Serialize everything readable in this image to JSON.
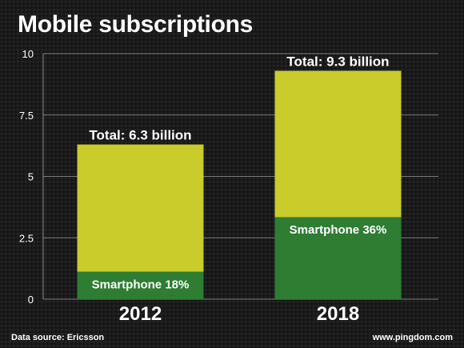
{
  "chart_data": {
    "type": "bar",
    "stacked": true,
    "title": "Mobile subscriptions",
    "categories": [
      "2012",
      "2018"
    ],
    "series": [
      {
        "values": [
          1.13,
          3.35
        ],
        "color": "#2e7d32",
        "labels": [
          "Smartphone 18%",
          "Smartphone 36%"
        ]
      },
      {
        "values": [
          5.17,
          5.95
        ],
        "color": "#c9cc2a"
      }
    ],
    "totals": [
      "Total:  6.3 billion",
      "Total:  9.3 billion"
    ],
    "ylim": [
      0,
      10
    ],
    "yticks": [
      0,
      2.5,
      5,
      7.5,
      10
    ],
    "ytick_labels": [
      "0",
      "2.5",
      "5",
      "7.5",
      "10"
    ],
    "grid": true
  },
  "footer": {
    "source": "Data source: Ericsson",
    "site": "www.pingdom.com"
  }
}
